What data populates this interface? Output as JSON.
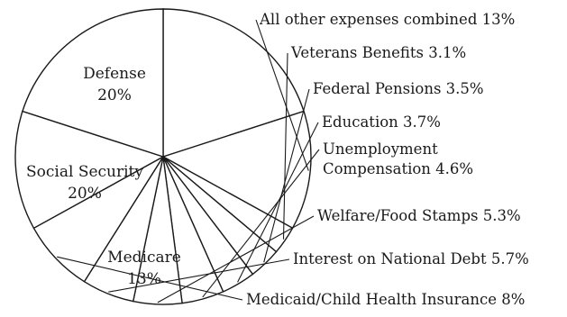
{
  "chart_data": {
    "type": "pie",
    "slices": [
      {
        "label": "Defense",
        "value": 20,
        "display": "20%"
      },
      {
        "label": "All other expenses combined",
        "value": 13,
        "display": "13%"
      },
      {
        "label": "Veterans Benefits",
        "value": 3.1,
        "display": "3.1%"
      },
      {
        "label": "Federal Pensions",
        "value": 3.5,
        "display": "3.5%"
      },
      {
        "label": "Education",
        "value": 3.7,
        "display": "3.7%"
      },
      {
        "label": "Unemployment Compensation",
        "value": 4.6,
        "display": "4.6%",
        "lines": [
          "Unemployment",
          "Compensation 4.6%"
        ]
      },
      {
        "label": "Welfare/Food Stamps",
        "value": 5.3,
        "display": "5.3%"
      },
      {
        "label": "Interest on National Debt",
        "value": 5.7,
        "display": "5.7%"
      },
      {
        "label": "Medicaid/Child Health Insurance",
        "value": 8,
        "display": "8%"
      },
      {
        "label": "Medicare",
        "value": 13,
        "display": "13%"
      },
      {
        "label": "Social Security",
        "value": 20,
        "display": "20%"
      }
    ],
    "inside_labels": [
      "Defense",
      "Medicare",
      "Social Security"
    ],
    "outside_labels": [
      "All other expenses combined",
      "Veterans Benefits",
      "Federal Pensions",
      "Education",
      "Unemployment Compensation",
      "Welfare/Food Stamps",
      "Interest on National Debt",
      "Medicaid/Child Health Insurance"
    ],
    "fill_color": "#ffffff",
    "stroke_color": "#1a1a1a"
  }
}
